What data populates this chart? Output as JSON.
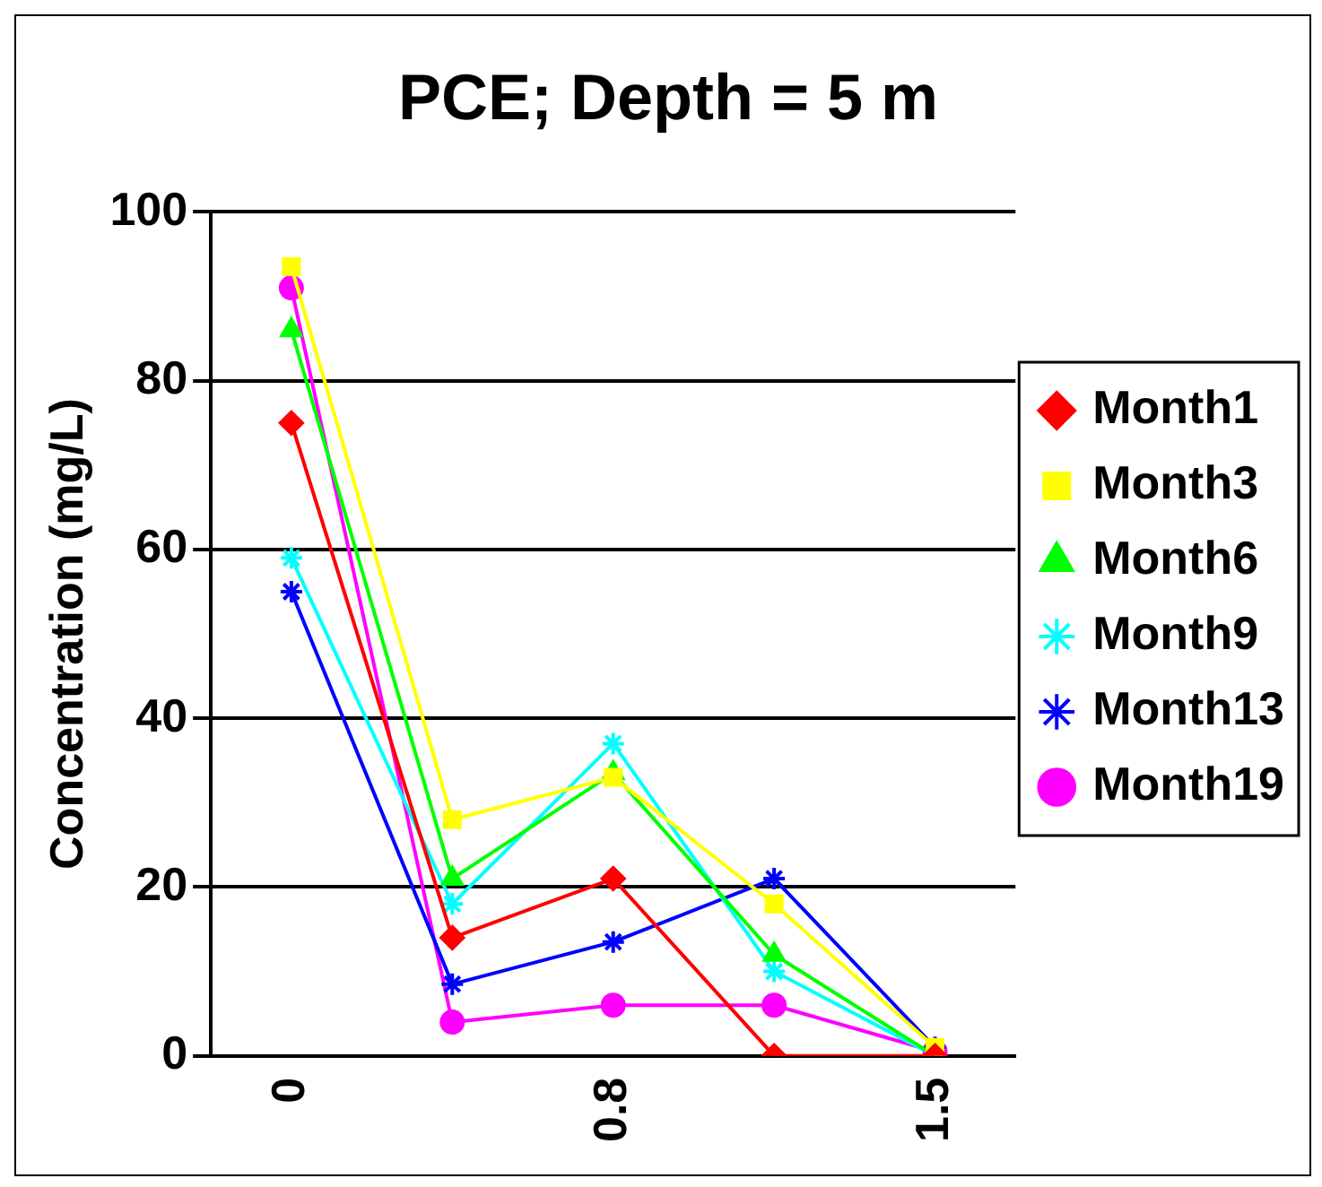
{
  "chart_data": {
    "type": "line",
    "title": "PCE; Depth = 5 m",
    "ylabel": "Concentration (mg/L)",
    "categories": [
      "0",
      null,
      "0.8",
      null,
      "1.5"
    ],
    "series": [
      {
        "name": "Month1",
        "color": "#ff0000",
        "marker": "diamond",
        "values": [
          75,
          14,
          21,
          0,
          0
        ]
      },
      {
        "name": "Month3",
        "color": "#ffff00",
        "marker": "square",
        "values": [
          93.5,
          28,
          33,
          18,
          1
        ]
      },
      {
        "name": "Month6",
        "color": "#00ff00",
        "marker": "triangle",
        "values": [
          86,
          21,
          33.5,
          12,
          0
        ]
      },
      {
        "name": "Month9",
        "color": "#00ffff",
        "marker": "cross",
        "values": [
          59,
          18,
          37,
          10,
          0
        ]
      },
      {
        "name": "Month13",
        "color": "#0000ff",
        "marker": "cross",
        "values": [
          55,
          8.5,
          13.5,
          21,
          1
        ]
      },
      {
        "name": "Month19",
        "color": "#ff00ff",
        "marker": "circle",
        "values": [
          91,
          4,
          6,
          6,
          0.5
        ]
      }
    ],
    "ylim": [
      0,
      100
    ],
    "yticks": [
      0,
      20,
      40,
      60,
      80,
      100
    ],
    "grid": "y",
    "legend": "right"
  }
}
